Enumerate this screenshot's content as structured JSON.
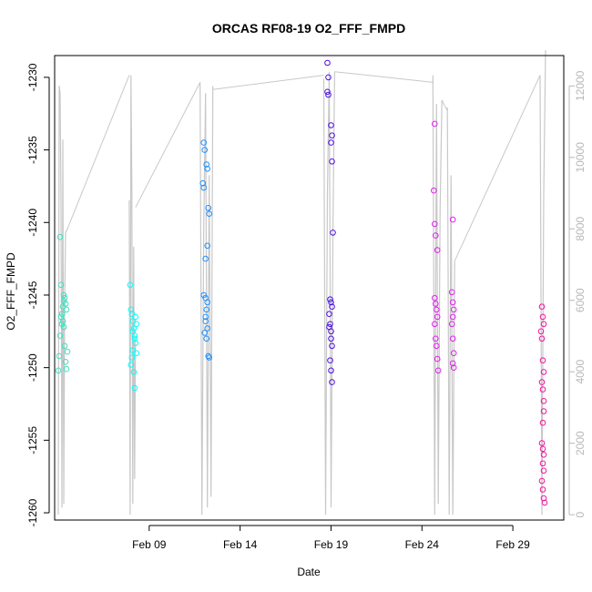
{
  "chart_data": {
    "type": "scatter",
    "title": "ORCAS RF08-19 O2_FFF_FMPD",
    "xlabel": "Date",
    "ylabel": "O2_FFF_FMPD",
    "x_ticks": [
      "Feb 09",
      "Feb 14",
      "Feb 19",
      "Feb 24",
      "Feb 29"
    ],
    "y_ticks": [
      "-1230",
      "-1235",
      "-1240",
      "-1245",
      "-1250",
      "-1255",
      "-1260"
    ],
    "y2_ticks": [
      "0",
      "2000",
      "4000",
      "6000",
      "8000",
      "10000",
      "12000"
    ],
    "xlim": [
      3.8,
      31.8
    ],
    "ylim": [
      -1260.5,
      -1228.5
    ],
    "y2lim": [
      -150,
      12850
    ],
    "y2_axis_color": "#b8b8b8",
    "grid": false,
    "series": [
      {
        "color": "#40e0c0",
        "values": [
          [
            4.0,
            -1250.2
          ],
          [
            4.05,
            -1249.2
          ],
          [
            4.1,
            -1247.8
          ],
          [
            4.15,
            -1246.5
          ],
          [
            4.2,
            -1246.3
          ],
          [
            4.25,
            -1245.8
          ],
          [
            4.3,
            -1245.4
          ],
          [
            4.35,
            -1245.2
          ],
          [
            4.4,
            -1245.6
          ],
          [
            4.45,
            -1246.0
          ],
          [
            4.15,
            -1244.3
          ],
          [
            4.1,
            -1241.0
          ],
          [
            4.3,
            -1247.2
          ],
          [
            4.35,
            -1248.5
          ],
          [
            4.4,
            -1249.6
          ],
          [
            4.45,
            -1250.1
          ],
          [
            4.5,
            -1248.9
          ],
          [
            4.2,
            -1247.0
          ],
          [
            4.25,
            -1246.8
          ],
          [
            4.3,
            -1245.0
          ]
        ]
      },
      {
        "color": "#00ffff",
        "values": [
          [
            7.95,
            -1244.3
          ],
          [
            8.0,
            -1246.0
          ],
          [
            8.05,
            -1246.3
          ],
          [
            8.1,
            -1246.8
          ],
          [
            8.15,
            -1247.3
          ],
          [
            8.2,
            -1247.8
          ],
          [
            8.25,
            -1248.3
          ],
          [
            8.1,
            -1248.8
          ],
          [
            8.05,
            -1249.3
          ],
          [
            8.0,
            -1249.8
          ],
          [
            8.15,
            -1250.3
          ],
          [
            8.2,
            -1251.4
          ],
          [
            8.25,
            -1246.5
          ],
          [
            8.3,
            -1247.0
          ],
          [
            8.1,
            -1247.5
          ],
          [
            8.2,
            -1248.0
          ],
          [
            8.3,
            -1249.0
          ]
        ]
      },
      {
        "color": "#1e90ff",
        "values": [
          [
            12.0,
            -1234.5
          ],
          [
            12.05,
            -1235.0
          ],
          [
            11.95,
            -1237.3
          ],
          [
            12.0,
            -1237.6
          ],
          [
            12.15,
            -1236.0
          ],
          [
            12.2,
            -1236.3
          ],
          [
            12.25,
            -1239.0
          ],
          [
            12.3,
            -1239.4
          ],
          [
            12.2,
            -1241.6
          ],
          [
            12.1,
            -1242.5
          ],
          [
            12.0,
            -1245.0
          ],
          [
            12.1,
            -1245.2
          ],
          [
            12.2,
            -1245.5
          ],
          [
            12.15,
            -1246.0
          ],
          [
            12.1,
            -1246.5
          ],
          [
            12.05,
            -1247.6
          ],
          [
            12.15,
            -1248.0
          ],
          [
            12.25,
            -1249.2
          ],
          [
            12.3,
            -1249.3
          ],
          [
            12.2,
            -1247.3
          ],
          [
            12.1,
            -1246.8
          ]
        ]
      },
      {
        "color": "#4b0fe0",
        "values": [
          [
            18.8,
            -1229.0
          ],
          [
            18.85,
            -1230.0
          ],
          [
            18.8,
            -1231.0
          ],
          [
            18.85,
            -1231.2
          ],
          [
            19.0,
            -1233.3
          ],
          [
            19.05,
            -1234.0
          ],
          [
            19.0,
            -1234.5
          ],
          [
            19.05,
            -1235.8
          ],
          [
            19.1,
            -1240.7
          ],
          [
            18.95,
            -1245.3
          ],
          [
            19.0,
            -1245.5
          ],
          [
            19.05,
            -1245.8
          ],
          [
            18.9,
            -1246.3
          ],
          [
            18.95,
            -1247.0
          ],
          [
            19.0,
            -1247.5
          ],
          [
            19.05,
            -1248.5
          ],
          [
            18.95,
            -1249.5
          ],
          [
            19.0,
            -1250.2
          ],
          [
            19.05,
            -1251.0
          ],
          [
            18.9,
            -1247.2
          ],
          [
            19.0,
            -1248.0
          ]
        ]
      },
      {
        "color": "#e020f0",
        "values": [
          [
            24.7,
            -1233.2
          ],
          [
            24.65,
            -1237.8
          ],
          [
            24.7,
            -1240.1
          ],
          [
            24.75,
            -1240.9
          ],
          [
            24.85,
            -1241.9
          ],
          [
            24.7,
            -1245.2
          ],
          [
            24.75,
            -1245.6
          ],
          [
            24.8,
            -1246.0
          ],
          [
            24.85,
            -1246.5
          ],
          [
            24.7,
            -1247.0
          ],
          [
            24.75,
            -1248.0
          ],
          [
            24.8,
            -1248.5
          ],
          [
            24.85,
            -1249.4
          ],
          [
            24.9,
            -1250.2
          ],
          [
            25.7,
            -1239.8
          ],
          [
            25.65,
            -1244.8
          ],
          [
            25.7,
            -1245.5
          ],
          [
            25.75,
            -1246.0
          ],
          [
            25.7,
            -1246.5
          ],
          [
            25.65,
            -1247.0
          ],
          [
            25.7,
            -1248.0
          ],
          [
            25.75,
            -1249.0
          ],
          [
            25.7,
            -1249.7
          ],
          [
            25.75,
            -1250.0
          ]
        ]
      },
      {
        "color": "#f0149c",
        "values": [
          [
            30.6,
            -1245.8
          ],
          [
            30.65,
            -1246.5
          ],
          [
            30.7,
            -1247.0
          ],
          [
            30.6,
            -1248.0
          ],
          [
            30.65,
            -1249.5
          ],
          [
            30.7,
            -1250.3
          ],
          [
            30.6,
            -1251.0
          ],
          [
            30.65,
            -1251.5
          ],
          [
            30.7,
            -1252.3
          ],
          [
            30.65,
            -1253.8
          ],
          [
            30.6,
            -1255.2
          ],
          [
            30.65,
            -1255.6
          ],
          [
            30.7,
            -1256.0
          ],
          [
            30.65,
            -1256.6
          ],
          [
            30.7,
            -1257.1
          ],
          [
            30.6,
            -1257.8
          ],
          [
            30.65,
            -1258.4
          ],
          [
            30.7,
            -1259.0
          ],
          [
            30.75,
            -1259.3
          ],
          [
            30.55,
            -1247.5
          ],
          [
            30.7,
            -1253.0
          ]
        ]
      }
    ],
    "secondary_series": {
      "color": "#c8c8c8",
      "flights": [
        {
          "x": [
            4.0,
            4.05,
            4.1,
            4.15,
            4.2,
            4.25,
            4.3,
            4.35,
            4.4,
            4.5
          ],
          "y": [
            0,
            12000,
            11800,
            8800,
            200,
            10500,
            300,
            6000,
            7900,
            8000
          ]
        },
        {
          "x": [
            7.9,
            7.95,
            8.0,
            8.05,
            8.1,
            8.15,
            8.2,
            8.25
          ],
          "y": [
            8800,
            0,
            12300,
            9000,
            300,
            7500,
            1000,
            5000
          ]
        },
        {
          "x": [
            11.8,
            11.9,
            12.0,
            12.1,
            12.2,
            12.3,
            12.4,
            12.5
          ],
          "y": [
            12100,
            0,
            8000,
            11800,
            200,
            9500,
            500,
            12000
          ]
        },
        {
          "x": [
            18.6,
            18.7,
            18.8,
            18.9,
            19.0,
            19.1,
            19.2
          ],
          "y": [
            12200,
            0,
            9000,
            12400,
            200,
            7800,
            12400
          ]
        },
        {
          "x": [
            24.6,
            24.7,
            24.8,
            24.9,
            25.0,
            25.1
          ],
          "y": [
            12300,
            0,
            11500,
            300,
            8500,
            11600
          ]
        },
        {
          "x": [
            25.4,
            25.5,
            25.6,
            25.7,
            25.8
          ],
          "y": [
            11400,
            0,
            9500,
            0,
            7100
          ]
        },
        {
          "x": [
            30.5,
            30.6,
            30.7,
            30.8
          ],
          "y": [
            12300,
            0,
            9000,
            13000
          ]
        }
      ],
      "connections": [
        {
          "x": [
            4.5,
            7.9
          ],
          "y": [
            8000,
            12300
          ]
        },
        {
          "x": [
            8.25,
            11.8
          ],
          "y": [
            8600,
            12100
          ]
        },
        {
          "x": [
            12.5,
            18.6
          ],
          "y": [
            11900,
            12300
          ]
        },
        {
          "x": [
            19.2,
            24.6
          ],
          "y": [
            12400,
            12100
          ]
        },
        {
          "x": [
            25.1,
            25.4
          ],
          "y": [
            11600,
            11300
          ]
        },
        {
          "x": [
            25.8,
            30.5
          ],
          "y": [
            7100,
            12300
          ]
        }
      ]
    }
  }
}
